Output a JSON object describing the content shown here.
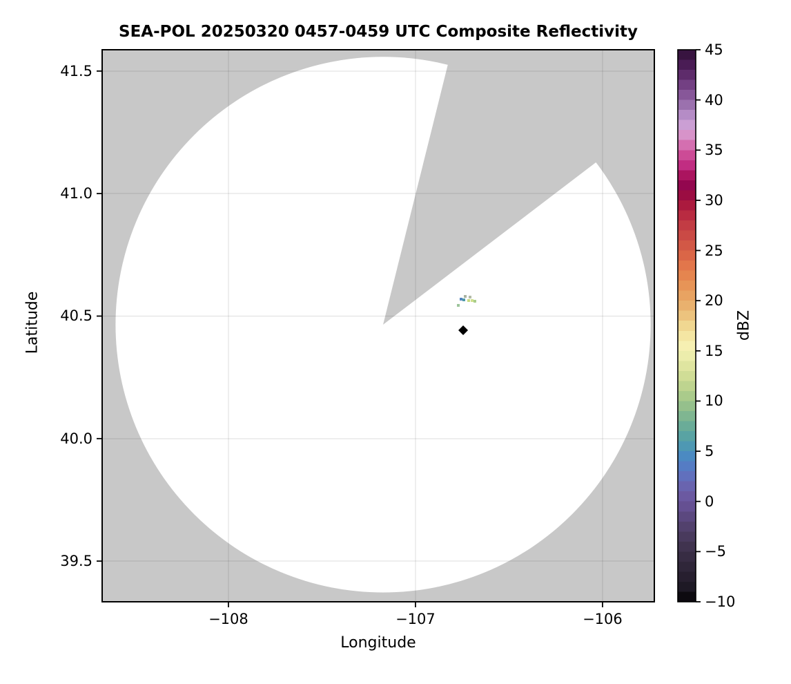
{
  "chart_data": {
    "type": "heatmap",
    "title": "SEA-POL 20250320 0457-0459 UTC Composite Reflectivity",
    "xlabel": "Longitude",
    "ylabel": "Latitude",
    "xlim": [
      -108.675,
      -105.723
    ],
    "ylim": [
      39.334,
      41.587
    ],
    "x_ticks": {
      "values": [
        -108,
        -107,
        -106
      ],
      "labels": [
        "−108",
        "−107",
        "−106"
      ]
    },
    "y_ticks": {
      "values": [
        39.5,
        40.0,
        40.5,
        41.0,
        41.5
      ],
      "labels": [
        "39.5",
        "40.0",
        "40.5",
        "41.0",
        "41.5"
      ]
    },
    "grid": true,
    "gridline_color": "rgba(0,0,0,0.13)",
    "no_data_color": "#c8c8c8",
    "coverage": {
      "center_lon": -107.173,
      "center_lat": 40.465,
      "radius_deg_lat": 1.093,
      "fill": "#ffffff",
      "missing_sector": {
        "azimuth_start_deg": 14.0,
        "azimuth_end_deg": 52.7
      }
    },
    "echoes": [
      {
        "lon": -106.756,
        "lat": 40.569,
        "dbz": 5,
        "color": "#5585c0"
      },
      {
        "lon": -106.741,
        "lat": 40.566,
        "dbz": 7,
        "color": "#4f9aa8"
      },
      {
        "lon": -106.715,
        "lat": 40.563,
        "dbz": 14,
        "color": "#c9da80"
      },
      {
        "lon": -106.697,
        "lat": 40.563,
        "dbz": 13,
        "color": "#cfe08d"
      },
      {
        "lon": -106.682,
        "lat": 40.561,
        "dbz": 11,
        "color": "#a9cd8b"
      },
      {
        "lon": -106.771,
        "lat": 40.544,
        "dbz": 9,
        "color": "#9cc49a"
      },
      {
        "lon": -106.734,
        "lat": 40.581,
        "dbz": 16,
        "color": "#a9b3a2"
      },
      {
        "lon": -106.708,
        "lat": 40.578,
        "dbz": 16,
        "color": "#b3bba8"
      }
    ],
    "site_marker": {
      "lon": -106.745,
      "lat": 40.442,
      "shape": "diamond",
      "color": "#000000"
    },
    "colorbar": {
      "label": "dBZ",
      "min": -10,
      "max": 45,
      "step": 1,
      "tick_values": [
        45,
        40,
        35,
        30,
        25,
        20,
        15,
        10,
        5,
        0,
        -5,
        -10
      ],
      "tick_labels": [
        "45",
        "40",
        "35",
        "30",
        "25",
        "20",
        "15",
        "10",
        "5",
        "0",
        "−5",
        "−10"
      ],
      "band_colors_top_to_bottom": [
        "#381440",
        "#4a1c55",
        "#5e2c6b",
        "#734083",
        "#875799",
        "#9b71ae",
        "#b58cc6",
        "#cb9fd4",
        "#d793c9",
        "#d46fb0",
        "#cc4b96",
        "#c12d82",
        "#ab145f",
        "#93074f",
        "#9b0d42",
        "#ab1a3e",
        "#b92b41",
        "#c23c44",
        "#ca4a45",
        "#d25846",
        "#da6647",
        "#e2764b",
        "#e5854f",
        "#e79457",
        "#e8a362",
        "#e9b16e",
        "#ecc37e",
        "#f0d791",
        "#f4e6a3",
        "#f6f0b2",
        "#ecedac",
        "#dfe5a0",
        "#d0dd96",
        "#bed48f",
        "#aacb8b",
        "#95c08c",
        "#7fb691",
        "#6aac98",
        "#59a3a3",
        "#4e98b3",
        "#4b8ac2",
        "#557cc4",
        "#6170bd",
        "#6964af",
        "#6b59a1",
        "#655092",
        "#5b487f",
        "#52416d",
        "#493a5d",
        "#40334f",
        "#372c43",
        "#2f2639",
        "#271f2f",
        "#1e1925",
        "#0d0a10"
      ]
    }
  }
}
